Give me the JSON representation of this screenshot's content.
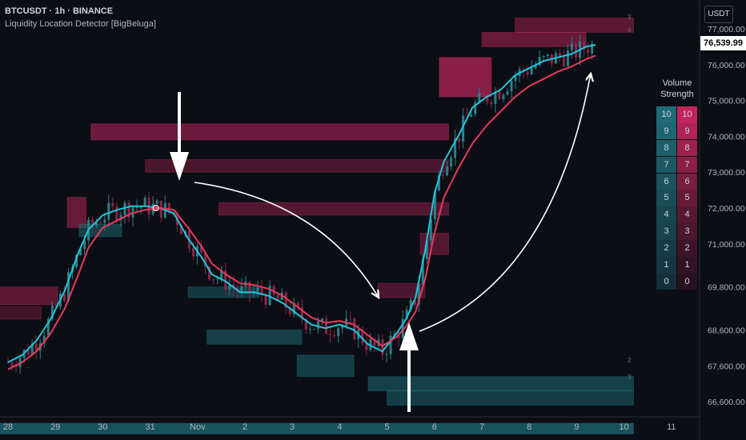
{
  "header": {
    "symbol_line": "BTCUSDT · 1h · BINANCE",
    "indicator": "Liquidity Location Detector [BigBeluga]"
  },
  "currency_button": "USDT",
  "last_price_label": "76,539.99",
  "volume_strength": {
    "title_line1": "Volume",
    "title_line2": "Strength",
    "bull_levels": [
      "10",
      "9",
      "8",
      "7",
      "6",
      "5",
      "4",
      "3",
      "2",
      "1",
      "0"
    ],
    "bear_levels": [
      "10",
      "9",
      "8",
      "7",
      "6",
      "5",
      "4",
      "3",
      "2",
      "1",
      "0"
    ],
    "bull_colors": [
      "#1e6b76",
      "#1d6570",
      "#1c5f6a",
      "#1b5964",
      "#1a535e",
      "#194d58",
      "#184752",
      "#17414c",
      "#163b46",
      "#153540",
      "#142f3a"
    ],
    "bear_colors": [
      "#c2255c",
      "#b02355",
      "#9e214e",
      "#8c1f47",
      "#7a1d40",
      "#681b39",
      "#561932",
      "#4a172d",
      "#3e1528",
      "#321323",
      "#28111e"
    ]
  },
  "chart_data": {
    "type": "line",
    "title": "",
    "xlabel": "",
    "ylabel": "",
    "ylim": [
      66200,
      77400
    ],
    "y_ticks": [
      "77,000.00",
      "76,000.00",
      "75,000.00",
      "74,000.00",
      "73,000.00",
      "72,000.00",
      "71,000.00",
      "69,800.00",
      "68,600.00",
      "67,600.00",
      "66,600.00"
    ],
    "y_tick_values": [
      77000,
      76000,
      75000,
      74000,
      73000,
      72000,
      71000,
      69800,
      68600,
      67600,
      66600
    ],
    "x_ticks": [
      {
        "label": "28",
        "t": 0
      },
      {
        "label": "29",
        "t": 1
      },
      {
        "label": "30",
        "t": 2
      },
      {
        "label": "31",
        "t": 3
      },
      {
        "label": "Nov",
        "t": 4
      },
      {
        "label": "2",
        "t": 5
      },
      {
        "label": "3",
        "t": 6
      },
      {
        "label": "4",
        "t": 7
      },
      {
        "label": "5",
        "t": 8
      },
      {
        "label": "6",
        "t": 9
      },
      {
        "label": "7",
        "t": 10
      },
      {
        "label": "8",
        "t": 11
      },
      {
        "label": "9",
        "t": 12
      },
      {
        "label": "10",
        "t": 13
      },
      {
        "label": "11",
        "t": 14
      }
    ],
    "series": [
      {
        "color": "#21c5d9",
        "x": [
          0,
          0.3,
          0.6,
          0.9,
          1.2,
          1.5,
          1.7,
          2,
          2.3,
          2.6,
          2.9,
          3.2,
          3.5,
          3.8,
          4.1,
          4.3,
          4.6,
          4.9,
          5.2,
          5.5,
          5.8,
          6.1,
          6.4,
          6.7,
          7,
          7.3,
          7.6,
          7.9,
          8.2,
          8.4,
          8.6,
          8.8,
          9,
          9.2,
          9.5,
          9.8,
          10.1,
          10.4,
          10.7,
          11,
          11.3,
          11.6,
          11.9,
          12.2,
          12.4
        ],
        "values": [
          67700,
          67900,
          68300,
          68900,
          69700,
          70800,
          71400,
          71800,
          71950,
          72050,
          72050,
          72000,
          71850,
          71150,
          70600,
          70150,
          69950,
          69650,
          69650,
          69550,
          69350,
          69050,
          68750,
          68650,
          68750,
          68600,
          68200,
          68000,
          68500,
          68900,
          69500,
          70800,
          72400,
          73300,
          74000,
          74800,
          75100,
          75300,
          75700,
          75900,
          76100,
          76200,
          76300,
          76500,
          76550
        ]
      },
      {
        "color": "#e63b5f",
        "x": [
          0,
          0.3,
          0.6,
          0.9,
          1.2,
          1.5,
          1.7,
          2,
          2.3,
          2.6,
          2.9,
          3.2,
          3.5,
          3.8,
          4.1,
          4.3,
          4.6,
          4.9,
          5.2,
          5.5,
          5.8,
          6.1,
          6.4,
          6.7,
          7,
          7.3,
          7.6,
          7.9,
          8.2,
          8.4,
          8.6,
          8.8,
          9,
          9.2,
          9.5,
          9.8,
          10.1,
          10.4,
          10.7,
          11,
          11.3,
          11.6,
          11.9,
          12.2,
          12.4
        ],
        "values": [
          67500,
          67700,
          68000,
          68500,
          69200,
          70200,
          70900,
          71450,
          71650,
          71850,
          71950,
          72000,
          71950,
          71450,
          70900,
          70450,
          70150,
          69900,
          69850,
          69750,
          69550,
          69250,
          68950,
          68800,
          68850,
          68750,
          68450,
          68150,
          68400,
          68700,
          69100,
          70000,
          71300,
          72300,
          73100,
          73800,
          74300,
          74700,
          75100,
          75400,
          75600,
          75800,
          75950,
          76150,
          76250
        ]
      }
    ],
    "liquidity_zones": {
      "bearish": [
        {
          "t0": 1.75,
          "t1": 9.3,
          "lo": 73900,
          "hi": 74350,
          "alpha": 0.55
        },
        {
          "t0": 2.9,
          "t1": 9.3,
          "lo": 73000,
          "hi": 73350,
          "alpha": 0.35
        },
        {
          "t0": 1.25,
          "t1": 1.65,
          "lo": 71450,
          "hi": 72300,
          "alpha": 0.5
        },
        {
          "t0": 4.45,
          "t1": 9.3,
          "lo": 71800,
          "hi": 72150,
          "alpha": 0.4
        },
        {
          "t0": -0.2,
          "t1": 1.05,
          "lo": 69300,
          "hi": 69800,
          "alpha": 0.45
        },
        {
          "t0": -0.2,
          "t1": 0.7,
          "lo": 68900,
          "hi": 69250,
          "alpha": 0.3
        },
        {
          "t0": 7.8,
          "t1": 8.8,
          "lo": 69500,
          "hi": 69900,
          "alpha": 0.35
        },
        {
          "t0": 8.7,
          "t1": 9.3,
          "lo": 70700,
          "hi": 71300,
          "alpha": 0.4
        },
        {
          "t0": 9.1,
          "t1": 10.2,
          "lo": 75100,
          "hi": 76200,
          "alpha": 0.7
        },
        {
          "t0": 10.0,
          "t1": 12.2,
          "lo": 76500,
          "hi": 76900,
          "alpha": 0.5
        },
        {
          "t0": 10.7,
          "t1": 13.2,
          "lo": 76900,
          "hi": 77300,
          "alpha": 0.45
        }
      ],
      "bullish": [
        {
          "t0": 1.5,
          "t1": 2.4,
          "lo": 71200,
          "hi": 71550,
          "alpha": 0.5
        },
        {
          "t0": 3.8,
          "t1": 5.3,
          "lo": 69500,
          "hi": 69800,
          "alpha": 0.45
        },
        {
          "t0": 4.2,
          "t1": 6.2,
          "lo": 68200,
          "hi": 68600,
          "alpha": 0.5
        },
        {
          "t0": 6.1,
          "t1": 7.3,
          "lo": 67300,
          "hi": 67900,
          "alpha": 0.5
        },
        {
          "t0": 7.6,
          "t1": 13.2,
          "lo": 66900,
          "hi": 67300,
          "alpha": 0.55
        },
        {
          "t0": 8.0,
          "t1": 13.2,
          "lo": 66500,
          "hi": 66900,
          "alpha": 0.5
        },
        {
          "t0": -0.2,
          "t1": 13.2,
          "lo": 65700,
          "hi": 66000,
          "alpha": 0.75
        }
      ]
    },
    "zone_labels": [
      "3",
      "4",
      "2",
      "3"
    ],
    "markers": [
      {
        "t": 3.12,
        "value": 72000,
        "color": "#e63b5f"
      },
      {
        "t": 8.45,
        "value": 68500,
        "color": "#21c5d9"
      }
    ]
  }
}
